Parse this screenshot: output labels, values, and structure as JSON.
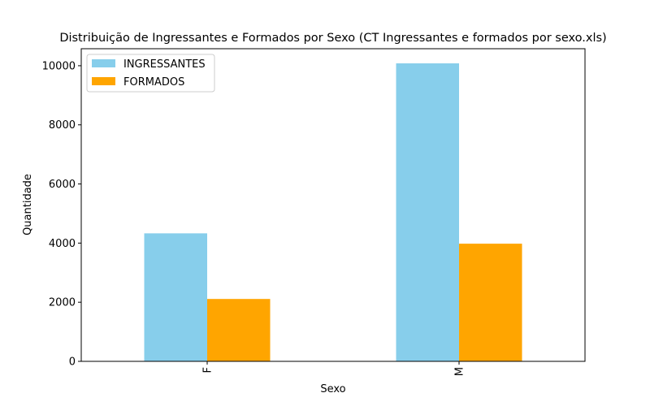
{
  "chart_data": {
    "type": "bar",
    "title": "Distribuição de Ingressantes e Formados por Sexo (CT Ingressantes e formados por sexo.xls)",
    "xlabel": "Sexo",
    "ylabel": "Quantidade",
    "categories": [
      "F",
      "M"
    ],
    "series": [
      {
        "name": "INGRESSANTES",
        "values": [
          4330,
          10080
        ],
        "color": "#87CEEB"
      },
      {
        "name": "FORMADOS",
        "values": [
          2110,
          3980
        ],
        "color": "#FFA500"
      }
    ],
    "ylim": [
      0,
      10575
    ],
    "yticks": [
      0,
      2000,
      4000,
      6000,
      8000,
      10000
    ],
    "grid": false,
    "legend_position": "top-left"
  }
}
